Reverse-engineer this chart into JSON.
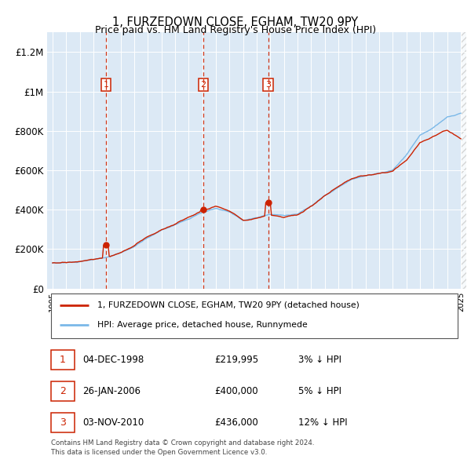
{
  "title": "1, FURZEDOWN CLOSE, EGHAM, TW20 9PY",
  "subtitle": "Price paid vs. HM Land Registry's House Price Index (HPI)",
  "plot_bg_color": "#dce9f5",
  "hpi_color": "#7ab8e8",
  "price_color": "#cc2200",
  "yticks": [
    0,
    200000,
    400000,
    600000,
    800000,
    1000000,
    1200000
  ],
  "ytick_labels": [
    "£0",
    "£200K",
    "£400K",
    "£600K",
    "£800K",
    "£1M",
    "£1.2M"
  ],
  "ylim": [
    0,
    1300000
  ],
  "xlim_start": 1994.6,
  "xlim_end": 2025.4,
  "xtick_years": [
    1995,
    1996,
    1997,
    1998,
    1999,
    2000,
    2001,
    2002,
    2003,
    2004,
    2005,
    2006,
    2007,
    2008,
    2009,
    2010,
    2011,
    2012,
    2013,
    2014,
    2015,
    2016,
    2017,
    2018,
    2019,
    2020,
    2021,
    2022,
    2023,
    2024,
    2025
  ],
  "transactions": [
    {
      "num": 1,
      "date": "04-DEC-1998",
      "price": 219995,
      "pct": "3%",
      "x": 1998.92
    },
    {
      "num": 2,
      "date": "26-JAN-2006",
      "price": 400000,
      "pct": "5%",
      "x": 2006.07
    },
    {
      "num": 3,
      "date": "03-NOV-2010",
      "price": 436000,
      "pct": "12%",
      "x": 2010.84
    }
  ],
  "legend_entries": [
    {
      "label": "1, FURZEDOWN CLOSE, EGHAM, TW20 9PY (detached house)",
      "color": "#cc2200"
    },
    {
      "label": "HPI: Average price, detached house, Runnymede",
      "color": "#7ab8e8"
    }
  ],
  "footer_line1": "Contains HM Land Registry data © Crown copyright and database right 2024.",
  "footer_line2": "This data is licensed under the Open Government Licence v3.0.",
  "hpi_base": [
    130000,
    132000,
    136000,
    145000,
    158000,
    178000,
    210000,
    255000,
    295000,
    325000,
    355000,
    385000,
    405000,
    385000,
    345000,
    360000,
    375000,
    370000,
    380000,
    420000,
    475000,
    520000,
    560000,
    580000,
    590000,
    605000,
    680000,
    780000,
    820000,
    870000,
    890000
  ],
  "price_base": [
    130000,
    132000,
    138000,
    148000,
    162000,
    185000,
    218000,
    265000,
    300000,
    330000,
    365000,
    398000,
    418000,
    395000,
    355000,
    368000,
    380000,
    372000,
    383000,
    425000,
    480000,
    520000,
    555000,
    570000,
    575000,
    590000,
    650000,
    740000,
    770000,
    800000,
    760000
  ]
}
